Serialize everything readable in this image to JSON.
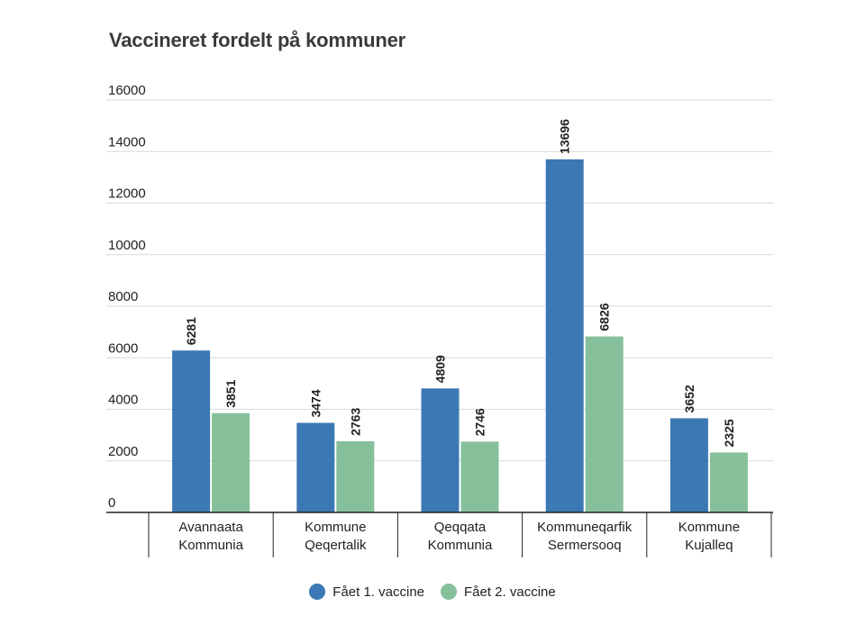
{
  "chart_data": {
    "type": "bar",
    "title": "Vaccineret fordelt på kommuner",
    "categories": [
      [
        "Avannaata",
        "Kommunia"
      ],
      [
        "Kommune",
        "Qeqertalik"
      ],
      [
        "Qeqqata",
        "Kommunia"
      ],
      [
        "Kommuneqarfik",
        "Sermersooq"
      ],
      [
        "Kommune",
        "Kujalleq"
      ]
    ],
    "series": [
      {
        "name": "Fået 1. vaccine",
        "color": "#3b78b4",
        "values": [
          6281,
          3474,
          4809,
          13696,
          3652
        ]
      },
      {
        "name": "Fået 2. vaccine",
        "color": "#86c09b",
        "values": [
          3851,
          2763,
          2746,
          6826,
          2325
        ]
      }
    ],
    "ylim": [
      0,
      16000
    ],
    "yticks": [
      0,
      2000,
      4000,
      6000,
      8000,
      10000,
      12000,
      14000,
      16000
    ],
    "grid": true,
    "legend_position": "bottom"
  }
}
